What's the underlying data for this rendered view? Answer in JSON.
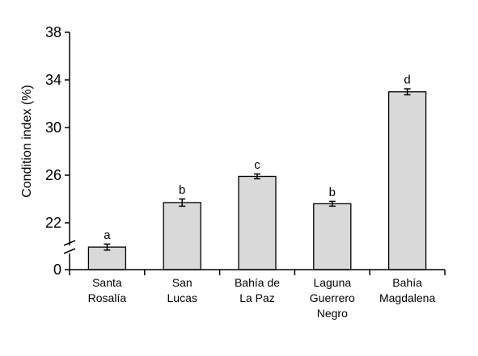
{
  "chart_data": {
    "type": "bar",
    "title": "",
    "xlabel": "",
    "ylabel": "Condition index (%)",
    "categories": [
      [
        "Santa",
        "Rosalía"
      ],
      [
        "San",
        "Lucas"
      ],
      [
        "Bahía de",
        "La Paz"
      ],
      [
        "Laguna",
        "Guerrero",
        "Negro"
      ],
      [
        "Bahía",
        "Magdalena"
      ]
    ],
    "values": [
      19.9,
      23.7,
      25.9,
      23.6,
      33.0
    ],
    "errors": [
      0.15,
      0.2,
      0.1,
      0.1,
      0.15
    ],
    "significance": [
      "a",
      "b",
      "c",
      "b",
      "d"
    ],
    "yticks": [
      {
        "value": 0,
        "label": "0"
      },
      {
        "value": 22,
        "label": "22"
      },
      {
        "value": 26,
        "label": "26"
      },
      {
        "value": 30,
        "label": "30"
      },
      {
        "value": 34,
        "label": "34"
      },
      {
        "value": 38,
        "label": "38"
      }
    ],
    "ylim": [
      0,
      38
    ],
    "axis_break": true,
    "grid": false,
    "legend": "none",
    "colors": {
      "bar_fill": "#d9d9d9",
      "bar_stroke": "#000000",
      "axis": "#000000"
    }
  }
}
